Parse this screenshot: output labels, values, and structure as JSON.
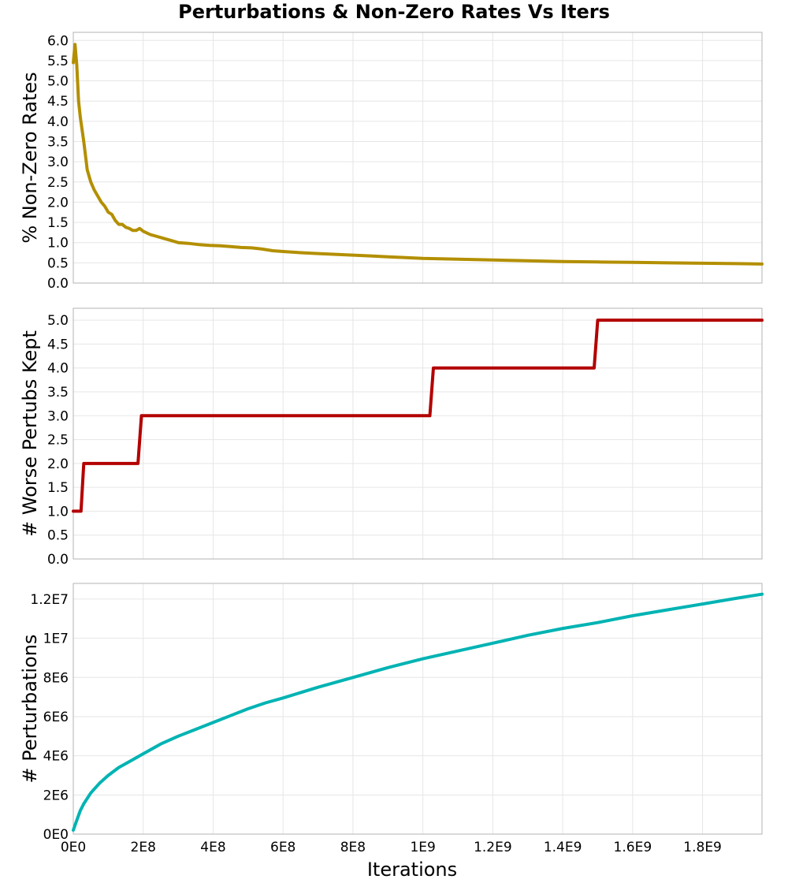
{
  "title": "Perturbations & Non-Zero Rates Vs Iters",
  "x_axis": {
    "label": "Iterations",
    "ticks": [
      {
        "value": 0,
        "label": "0E0"
      },
      {
        "value": 200000000,
        "label": "2E8"
      },
      {
        "value": 400000000,
        "label": "4E8"
      },
      {
        "value": 600000000,
        "label": "6E8"
      },
      {
        "value": 800000000,
        "label": "8E8"
      },
      {
        "value": 1000000000,
        "label": "1E9"
      },
      {
        "value": 1200000000,
        "label": "1.2E9"
      },
      {
        "value": 1400000000,
        "label": "1.4E9"
      },
      {
        "value": 1600000000,
        "label": "1.6E9"
      },
      {
        "value": 1800000000,
        "label": "1.8E9"
      }
    ],
    "range": [
      0,
      1970000000
    ]
  },
  "chart_data": [
    {
      "type": "line",
      "ylabel": "% Non-Zero Rates",
      "ylim": [
        0,
        6.2
      ],
      "yticks": [
        {
          "value": 0.0,
          "label": "0.0"
        },
        {
          "value": 0.5,
          "label": "0.5"
        },
        {
          "value": 1.0,
          "label": "1.0"
        },
        {
          "value": 1.5,
          "label": "1.5"
        },
        {
          "value": 2.0,
          "label": "2.0"
        },
        {
          "value": 2.5,
          "label": "2.5"
        },
        {
          "value": 3.0,
          "label": "3.0"
        },
        {
          "value": 3.5,
          "label": "3.5"
        },
        {
          "value": 4.0,
          "label": "4.0"
        },
        {
          "value": 4.5,
          "label": "4.5"
        },
        {
          "value": 5.0,
          "label": "5.0"
        },
        {
          "value": 5.5,
          "label": "5.5"
        },
        {
          "value": 6.0,
          "label": "6.0"
        }
      ],
      "grid": true,
      "color": "#b38f00",
      "x": [
        0,
        5000000,
        10000000,
        15000000,
        20000000,
        30000000,
        40000000,
        50000000,
        60000000,
        70000000,
        80000000,
        90000000,
        100000000,
        110000000,
        120000000,
        130000000,
        140000000,
        150000000,
        160000000,
        170000000,
        180000000,
        190000000,
        200000000,
        220000000,
        240000000,
        260000000,
        280000000,
        300000000,
        330000000,
        360000000,
        390000000,
        420000000,
        450000000,
        480000000,
        510000000,
        540000000,
        570000000,
        600000000,
        650000000,
        700000000,
        750000000,
        800000000,
        850000000,
        900000000,
        950000000,
        1000000000,
        1100000000,
        1200000000,
        1300000000,
        1400000000,
        1500000000,
        1600000000,
        1700000000,
        1800000000,
        1900000000,
        1970000000
      ],
      "y": [
        5.45,
        5.9,
        5.4,
        4.5,
        4.1,
        3.5,
        2.8,
        2.5,
        2.3,
        2.15,
        2.0,
        1.9,
        1.75,
        1.7,
        1.55,
        1.45,
        1.45,
        1.38,
        1.35,
        1.3,
        1.3,
        1.35,
        1.28,
        1.2,
        1.15,
        1.1,
        1.05,
        1.0,
        0.98,
        0.95,
        0.93,
        0.92,
        0.9,
        0.88,
        0.87,
        0.84,
        0.8,
        0.78,
        0.75,
        0.73,
        0.71,
        0.69,
        0.67,
        0.65,
        0.63,
        0.61,
        0.59,
        0.57,
        0.55,
        0.53,
        0.52,
        0.51,
        0.5,
        0.49,
        0.48,
        0.47
      ]
    },
    {
      "type": "line",
      "ylabel": "# Worse Pertubs Kept",
      "ylim": [
        0,
        5.25
      ],
      "yticks": [
        {
          "value": 0.0,
          "label": "0.0"
        },
        {
          "value": 0.5,
          "label": "0.5"
        },
        {
          "value": 1.0,
          "label": "1.0"
        },
        {
          "value": 1.5,
          "label": "1.5"
        },
        {
          "value": 2.0,
          "label": "2.0"
        },
        {
          "value": 2.5,
          "label": "2.5"
        },
        {
          "value": 3.0,
          "label": "3.0"
        },
        {
          "value": 3.5,
          "label": "3.5"
        },
        {
          "value": 4.0,
          "label": "4.0"
        },
        {
          "value": 4.5,
          "label": "4.5"
        },
        {
          "value": 5.0,
          "label": "5.0"
        }
      ],
      "grid": true,
      "color": "#b30000",
      "x": [
        0,
        22000000,
        30000000,
        185000000,
        195000000,
        1020000000,
        1030000000,
        1490000000,
        1500000000,
        1970000000
      ],
      "y": [
        1,
        1,
        2,
        2,
        3,
        3,
        4,
        4,
        5,
        5
      ]
    },
    {
      "type": "line",
      "ylabel": "# Perturbations",
      "ylim": [
        0,
        12800000
      ],
      "yticks": [
        {
          "value": 0,
          "label": "0E0"
        },
        {
          "value": 2000000,
          "label": "2E6"
        },
        {
          "value": 4000000,
          "label": "4E6"
        },
        {
          "value": 6000000,
          "label": "6E6"
        },
        {
          "value": 8000000,
          "label": "8E6"
        },
        {
          "value": 10000000,
          "label": "1E7"
        },
        {
          "value": 12000000,
          "label": "1.2E7"
        }
      ],
      "grid": true,
      "color": "#00b3b3",
      "x": [
        0,
        10000000,
        20000000,
        30000000,
        50000000,
        75000000,
        100000000,
        130000000,
        160000000,
        200000000,
        250000000,
        300000000,
        350000000,
        400000000,
        450000000,
        500000000,
        550000000,
        600000000,
        700000000,
        800000000,
        900000000,
        1000000000,
        1100000000,
        1200000000,
        1300000000,
        1400000000,
        1500000000,
        1600000000,
        1700000000,
        1800000000,
        1900000000,
        1970000000
      ],
      "y": [
        200000,
        700000,
        1200000,
        1550000,
        2100000,
        2600000,
        3000000,
        3400000,
        3700000,
        4100000,
        4600000,
        5000000,
        5350000,
        5700000,
        6050000,
        6400000,
        6700000,
        6950000,
        7500000,
        8000000,
        8500000,
        8950000,
        9350000,
        9750000,
        10150000,
        10500000,
        10800000,
        11150000,
        11450000,
        11750000,
        12050000,
        12250000
      ]
    }
  ]
}
